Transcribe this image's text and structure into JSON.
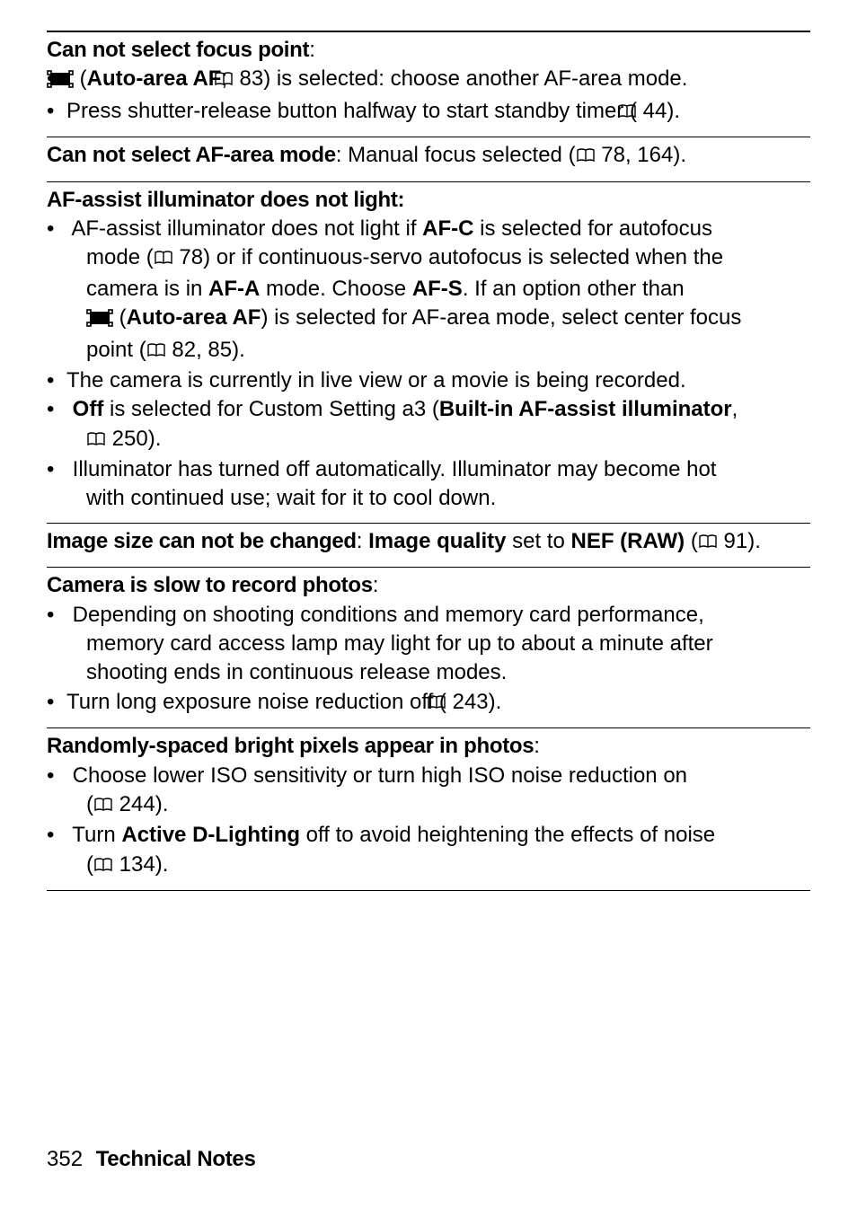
{
  "icons": {
    "book_svg": "<svg width='22' height='18' viewBox='0 0 22 18'><path d='M2 3 Q6 1 11 3 Q16 1 20 3 L20 15 Q16 13 11 15 Q6 13 2 15 Z' fill='none' stroke='#000' stroke-width='1.4'/><line x1='11' y1='3' x2='11' y2='15' stroke='#000' stroke-width='1.4'/></svg>",
    "autoarea_svg": "<svg width='30' height='20' viewBox='0 0 30 20'><rect x='4' y='3' width='22' height='14' fill='#000'/><rect x='1' y='1' width='4' height='4' fill='none' stroke='#000' stroke-width='1.6'/><rect x='25' y='1' width='4' height='4' fill='none' stroke='#000' stroke-width='1.6'/><rect x='1' y='15' width='4' height='4' fill='none' stroke='#000' stroke-width='1.6'/><rect x='25' y='15' width='4' height='4' fill='none' stroke='#000' stroke-width='1.6'/></svg>"
  },
  "page_refs": {
    "p83": "83",
    "p44": "44",
    "p78": "78",
    "p164": "164",
    "p82": "82",
    "p85": "85",
    "p250": "250",
    "p91": "91",
    "p243": "243",
    "p244": "244",
    "p134": "134"
  },
  "sections": {
    "s1": {
      "title": "Can not select focus point",
      "colon": ":",
      "b1_pre": " (",
      "b1_bold": "Auto-area AF",
      "b1_mid1": "; ",
      "b1_mid2": ") is selected: choose another AF-area mode.",
      "b2_pre": "Press shutter-release button halfway to start standby timer (",
      "b2_post": ")."
    },
    "s2": {
      "title": "Can not select AF-area mode",
      "rest_pre": ": Manual focus selected (",
      "rest_post": ")."
    },
    "s3": {
      "title": "AF-assist illuminator does not light:",
      "b1_l1_pre": "AF-assist illuminator does not light if ",
      "b1_l1_afc": "AF-C",
      "b1_l1_post": " is selected for autofocus ",
      "b1_l2_pre": "mode (",
      "b1_l2_post": ") or if continuous-servo autofocus is selected when the ",
      "b1_l3_pre": "camera is in ",
      "b1_l3_afa": "AF-A",
      "b1_l3_mid": " mode.  Choose ",
      "b1_l3_afs": "AF-S",
      "b1_l3_post": ". If an option other than ",
      "b1_l4_pre": " (",
      "b1_l4_bold": "Auto-area AF",
      "b1_l4_post": ") is selected for AF-area mode, select center focus ",
      "b1_l5_pre": "point (",
      "b1_l5_sep": ", ",
      "b1_l5_post": ").",
      "b2": "The camera is currently in live view or a movie is being recorded.",
      "b3_off": "Off",
      "b3_mid": " is selected for Custom Setting a3 (",
      "b3_bold": "Built-in AF-assist illuminator",
      "b3_post1": ", ",
      "b3_post2": ").",
      "b4_l1": "Illuminator has turned off automatically.  Illuminator may become hot ",
      "b4_l2": "with continued use; wait for it to cool down."
    },
    "s4": {
      "title": "Image size can not be changed",
      "mid1": ": ",
      "iq": "Image quality",
      "mid2": " set to ",
      "nef": "NEF (RAW)",
      "post_pre": " (",
      "post_suf": ")."
    },
    "s5": {
      "title": "Camera is slow to record photos",
      "colon": ":",
      "b1_l1": "Depending on shooting conditions and memory card performance, ",
      "b1_l2": "memory card access lamp may light for up to about a minute after ",
      "b1_l3": "shooting ends in continuous release modes.",
      "b2_pre": "Turn long exposure noise reduction off (",
      "b2_post": ")."
    },
    "s6": {
      "title": "Randomly-spaced bright pixels appear in photos",
      "colon": ":",
      "b1_l1": "Choose lower ISO sensitivity or turn high ISO noise reduction on ",
      "b1_l2_pre": "(",
      "b1_l2_post": ").",
      "b2_pre": "Turn ",
      "b2_bold": "Active D-Lighting",
      "b2_mid": " off to avoid heightening the effects of noise ",
      "b2_l2_pre": "(",
      "b2_l2_post": ")."
    }
  },
  "footer": {
    "page_number": "352",
    "title": "Technical Notes"
  }
}
